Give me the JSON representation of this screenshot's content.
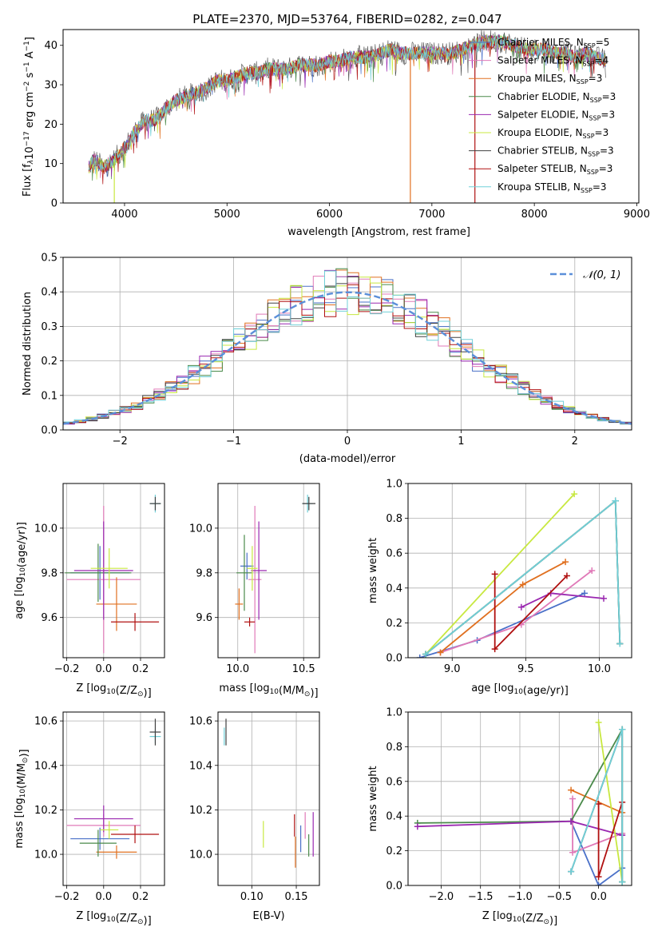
{
  "title": "PLATE=2370, MJD=53764, FIBERID=0282, z=0.047",
  "models": [
    {
      "name": "Chabrier MILES, N",
      "nssp": "5",
      "color": "#4a70c8"
    },
    {
      "name": "Salpeter MILES, N",
      "nssp": "4",
      "color": "#e07ab8"
    },
    {
      "name": "Kroupa MILES, N",
      "nssp": "3",
      "color": "#e07020"
    },
    {
      "name": "Chabrier ELODIE, N",
      "nssp": "3",
      "color": "#4a8a4a"
    },
    {
      "name": "Salpeter ELODIE, N",
      "nssp": "3",
      "color": "#9a28b0"
    },
    {
      "name": "Kroupa ELODIE, N",
      "nssp": "3",
      "color": "#c8e840"
    },
    {
      "name": "Chabrier STELIB, N",
      "nssp": "3",
      "color": "#404040"
    },
    {
      "name": "Salpeter STELIB, N",
      "nssp": "3",
      "color": "#b01010"
    },
    {
      "name": "Kroupa STELIB, N",
      "nssp": "3",
      "color": "#70d0d8"
    }
  ],
  "nssp_sub": "SSP",
  "chart_data": [
    {
      "id": "spectrum",
      "type": "line",
      "xlabel": "wavelength [Angstrom, rest frame]",
      "ylabel_parts": [
        "Flux [f",
        "λ",
        "10",
        "−17",
        " erg cm",
        "−2",
        " s",
        "−1",
        " A",
        "−1",
        "]"
      ],
      "xlim": [
        3400,
        9020
      ],
      "ylim": [
        0,
        44
      ],
      "xticks": [
        4000,
        5000,
        6000,
        7000,
        8000,
        9000
      ],
      "yticks": [
        0,
        10,
        20,
        30,
        40
      ],
      "continuum": [
        [
          3650,
          9
        ],
        [
          3700,
          11
        ],
        [
          3800,
          9
        ],
        [
          3900,
          11
        ],
        [
          4000,
          14
        ],
        [
          4100,
          18
        ],
        [
          4200,
          21
        ],
        [
          4300,
          21
        ],
        [
          4400,
          24
        ],
        [
          4500,
          26
        ],
        [
          4600,
          27
        ],
        [
          4700,
          28
        ],
        [
          4800,
          29
        ],
        [
          4900,
          31
        ],
        [
          5000,
          31
        ],
        [
          5100,
          32
        ],
        [
          5200,
          33
        ],
        [
          5300,
          33
        ],
        [
          5400,
          34
        ],
        [
          5500,
          34
        ],
        [
          5600,
          34
        ],
        [
          5700,
          35
        ],
        [
          5800,
          35
        ],
        [
          5900,
          35
        ],
        [
          6000,
          36
        ],
        [
          6100,
          36
        ],
        [
          6200,
          37
        ],
        [
          6300,
          37
        ],
        [
          6400,
          37
        ],
        [
          6500,
          38
        ],
        [
          6600,
          39
        ],
        [
          6700,
          38
        ],
        [
          6800,
          38
        ],
        [
          6900,
          38
        ],
        [
          7000,
          38
        ],
        [
          7100,
          38
        ],
        [
          7200,
          38
        ],
        [
          7300,
          39
        ],
        [
          7400,
          40
        ],
        [
          7500,
          41
        ],
        [
          7600,
          41
        ],
        [
          7700,
          41
        ],
        [
          7800,
          40
        ],
        [
          7900,
          39
        ],
        [
          8000,
          39
        ],
        [
          8100,
          39
        ],
        [
          8200,
          38
        ],
        [
          8300,
          38
        ],
        [
          8400,
          37
        ],
        [
          8500,
          38
        ],
        [
          8600,
          37
        ],
        [
          8700,
          36
        ]
      ],
      "dips": [
        {
          "x": 3900,
          "y": 0,
          "series": 5
        },
        {
          "x": 6790,
          "y": 0,
          "series": 2
        },
        {
          "x": 7420,
          "y": 0,
          "series": 7
        }
      ]
    },
    {
      "id": "residuals",
      "type": "histogram",
      "xlabel": "(data-model)/error",
      "ylabel": "Normed distribution",
      "xlim": [
        -2.5,
        2.5
      ],
      "ylim": [
        0,
        0.5
      ],
      "xticks": [
        -2,
        -1,
        0,
        1,
        2
      ],
      "yticks": [
        0.0,
        0.1,
        0.2,
        0.3,
        0.4,
        0.5
      ],
      "bin_width": 0.1,
      "legend": "𝒩(0, 1)",
      "gaussian_color": "#5b8fd9"
    },
    {
      "id": "age-vs-Z",
      "type": "scatter",
      "xlabel": "Z [log10(Z/Z⊙)]",
      "ylabel": "age  [log10(age/yr)]",
      "xlim": [
        -0.22,
        0.33
      ],
      "ylim": [
        9.42,
        10.2
      ],
      "xticks": [
        -0.2,
        0.0,
        0.2
      ],
      "yticks": [
        9.6,
        9.8,
        10.0
      ],
      "points": [
        {
          "x": 0.28,
          "y": 10.11,
          "xerr": 0.03,
          "yerr": 0.04,
          "series": 8
        },
        {
          "x": 0.28,
          "y": 10.11,
          "xerr": 0.03,
          "yerr": 0.03,
          "series": 6
        },
        {
          "x": -0.02,
          "y": 9.8,
          "xerr": 0.16,
          "yerr": 0.12,
          "series": 0
        },
        {
          "x": 0.0,
          "y": 9.77,
          "xerr": 0.2,
          "yerr": 0.33,
          "series": 1
        },
        {
          "x": 0.07,
          "y": 9.66,
          "xerr": 0.11,
          "yerr": 0.12,
          "series": 2
        },
        {
          "x": -0.03,
          "y": 9.8,
          "xerr": 0.18,
          "yerr": 0.13,
          "series": 3
        },
        {
          "x": 0.0,
          "y": 9.81,
          "xerr": 0.16,
          "yerr": 0.22,
          "series": 4
        },
        {
          "x": 0.03,
          "y": 9.82,
          "xerr": 0.1,
          "yerr": 0.09,
          "series": 5
        },
        {
          "x": 0.17,
          "y": 9.58,
          "xerr": 0.13,
          "yerr": 0.04,
          "series": 7
        }
      ]
    },
    {
      "id": "age-vs-mass",
      "type": "scatter",
      "xlabel": "mass [log10(M/M⊙)]",
      "ylabel": "",
      "xlim": [
        9.85,
        10.62
      ],
      "ylim": [
        9.42,
        10.2
      ],
      "xticks": [
        10.0,
        10.5
      ],
      "yticks": [
        9.6,
        9.8,
        10.0
      ],
      "points": [
        {
          "x": 10.53,
          "y": 10.11,
          "xerr": 0.04,
          "yerr": 0.04,
          "series": 8
        },
        {
          "x": 10.54,
          "y": 10.11,
          "xerr": 0.05,
          "yerr": 0.03,
          "series": 6
        },
        {
          "x": 10.07,
          "y": 9.83,
          "xerr": 0.05,
          "yerr": 0.06,
          "series": 0
        },
        {
          "x": 10.13,
          "y": 9.77,
          "xerr": 0.05,
          "yerr": 0.33,
          "series": 1
        },
        {
          "x": 10.01,
          "y": 9.66,
          "xerr": 0.03,
          "yerr": 0.07,
          "series": 2
        },
        {
          "x": 10.05,
          "y": 9.8,
          "xerr": 0.06,
          "yerr": 0.17,
          "series": 3
        },
        {
          "x": 10.16,
          "y": 9.81,
          "xerr": 0.06,
          "yerr": 0.22,
          "series": 4
        },
        {
          "x": 10.11,
          "y": 9.82,
          "xerr": 0.04,
          "yerr": 0.1,
          "series": 5
        },
        {
          "x": 10.09,
          "y": 9.58,
          "xerr": 0.04,
          "yerr": 0.02,
          "series": 7
        }
      ]
    },
    {
      "id": "weight-vs-age",
      "type": "line",
      "xlabel": "age  [log10(age/yr)]",
      "ylabel": "mass weight",
      "xlim": [
        8.7,
        10.22
      ],
      "ylim": [
        0,
        1.0
      ],
      "xticks": [
        9.0,
        9.5,
        10.0
      ],
      "yticks": [
        0.0,
        0.2,
        0.4,
        0.6,
        0.8,
        1.0
      ],
      "series": [
        {
          "series": 0,
          "x": [
            8.78,
            9.17,
            9.9
          ],
          "y": [
            0.0,
            0.1,
            0.37
          ]
        },
        {
          "series": 1,
          "x": [
            8.92,
            9.47,
            9.95
          ],
          "y": [
            0.03,
            0.19,
            0.5
          ]
        },
        {
          "series": 2,
          "x": [
            8.92,
            9.48,
            9.77
          ],
          "y": [
            0.03,
            0.42,
            0.55
          ]
        },
        {
          "series": 3,
          "x": [
            8.82,
            10.11,
            10.14
          ],
          "y": [
            0.02,
            0.9,
            0.08
          ]
        },
        {
          "series": 4,
          "x": [
            9.47,
            9.67,
            10.03
          ],
          "y": [
            0.29,
            0.37,
            0.34
          ]
        },
        {
          "series": 5,
          "x": [
            8.82,
            9.83
          ],
          "y": [
            0.02,
            0.94
          ]
        },
        {
          "series": 6,
          "x": [
            8.82,
            10.11,
            10.14
          ],
          "y": [
            0.02,
            0.9,
            0.08
          ]
        },
        {
          "series": 7,
          "x": [
            9.29,
            9.29,
            9.78
          ],
          "y": [
            0.48,
            0.05,
            0.47
          ]
        },
        {
          "series": 8,
          "x": [
            8.82,
            10.11,
            10.14
          ],
          "y": [
            0.02,
            0.9,
            0.08
          ]
        }
      ]
    },
    {
      "id": "mass-vs-Z",
      "type": "scatter",
      "xlabel": "Z [log10(Z/Z⊙)]",
      "ylabel": "mass [log10(M/M⊙)]",
      "xlim": [
        -0.22,
        0.33
      ],
      "ylim": [
        9.86,
        10.64
      ],
      "xticks": [
        -0.2,
        0.0,
        0.2
      ],
      "yticks": [
        10.0,
        10.2,
        10.4,
        10.6
      ],
      "points": [
        {
          "x": 0.28,
          "y": 10.53,
          "xerr": 0.03,
          "yerr": 0.03,
          "series": 8
        },
        {
          "x": 0.28,
          "y": 10.55,
          "xerr": 0.03,
          "yerr": 0.06,
          "series": 6
        },
        {
          "x": -0.02,
          "y": 10.07,
          "xerr": 0.16,
          "yerr": 0.05,
          "series": 0
        },
        {
          "x": 0.0,
          "y": 10.13,
          "xerr": 0.2,
          "yerr": 0.05,
          "series": 1
        },
        {
          "x": 0.07,
          "y": 10.01,
          "xerr": 0.11,
          "yerr": 0.03,
          "series": 2
        },
        {
          "x": -0.03,
          "y": 10.05,
          "xerr": 0.1,
          "yerr": 0.06,
          "series": 3
        },
        {
          "x": 0.0,
          "y": 10.16,
          "xerr": 0.16,
          "yerr": 0.06,
          "series": 4
        },
        {
          "x": 0.03,
          "y": 10.11,
          "xerr": 0.05,
          "yerr": 0.04,
          "series": 5
        },
        {
          "x": 0.17,
          "y": 10.09,
          "xerr": 0.13,
          "yerr": 0.04,
          "series": 7
        }
      ]
    },
    {
      "id": "mass-vs-ebv",
      "type": "scatter",
      "xlabel": "E(B-V)",
      "ylabel": "",
      "xlim": [
        0.062,
        0.176
      ],
      "ylim": [
        9.86,
        10.64
      ],
      "xticks": [
        0.1,
        0.15
      ],
      "yticks": [
        10.0,
        10.2,
        10.4,
        10.6
      ],
      "points": [
        {
          "x": 0.069,
          "y": 10.53,
          "xerr": 0,
          "yerr": 0.04,
          "series": 8
        },
        {
          "x": 0.071,
          "y": 10.55,
          "xerr": 0,
          "yerr": 0.06,
          "series": 6
        },
        {
          "x": 0.155,
          "y": 10.07,
          "xerr": 0,
          "yerr": 0.06,
          "series": 0
        },
        {
          "x": 0.16,
          "y": 10.13,
          "xerr": 0,
          "yerr": 0.06,
          "series": 1
        },
        {
          "x": 0.149,
          "y": 10.01,
          "xerr": 0,
          "yerr": 0.07,
          "series": 2
        },
        {
          "x": 0.164,
          "y": 10.04,
          "xerr": 0,
          "yerr": 0.05,
          "series": 3
        },
        {
          "x": 0.169,
          "y": 10.09,
          "xerr": 0,
          "yerr": 0.1,
          "series": 4
        },
        {
          "x": 0.113,
          "y": 10.09,
          "xerr": 0,
          "yerr": 0.06,
          "series": 5
        },
        {
          "x": 0.148,
          "y": 10.13,
          "xerr": 0,
          "yerr": 0.05,
          "series": 7
        }
      ]
    },
    {
      "id": "weight-vs-Z",
      "type": "line",
      "xlabel": "Z [log10(Z/Z⊙)]",
      "ylabel": "mass weight",
      "xlim": [
        -2.42,
        0.42
      ],
      "ylim": [
        0,
        1.0
      ],
      "xticks": [
        -2.0,
        -1.5,
        -1.0,
        -0.5,
        0.0
      ],
      "yticks": [
        0.0,
        0.2,
        0.4,
        0.6,
        0.8,
        1.0
      ],
      "series": [
        {
          "series": 0,
          "x": [
            -0.35,
            0.0,
            0.3
          ],
          "y": [
            0.37,
            0.0,
            0.1
          ]
        },
        {
          "series": 1,
          "x": [
            -0.33,
            -0.33,
            0.3
          ],
          "y": [
            0.5,
            0.19,
            0.3
          ]
        },
        {
          "series": 2,
          "x": [
            -0.35,
            0.3
          ],
          "y": [
            0.55,
            0.42
          ]
        },
        {
          "series": 3,
          "x": [
            -2.3,
            -0.35,
            0.3,
            0.3
          ],
          "y": [
            0.36,
            0.37,
            0.9,
            0.02
          ]
        },
        {
          "series": 4,
          "x": [
            -2.3,
            -0.35,
            0.3
          ],
          "y": [
            0.34,
            0.37,
            0.29
          ]
        },
        {
          "series": 5,
          "x": [
            0.0,
            0.3
          ],
          "y": [
            0.94,
            0.02
          ]
        },
        {
          "series": 6,
          "x": [
            -0.35,
            0.3,
            0.3
          ],
          "y": [
            0.08,
            0.9,
            0.02
          ]
        },
        {
          "series": 7,
          "x": [
            0.0,
            0.0,
            0.3
          ],
          "y": [
            0.47,
            0.05,
            0.48
          ]
        },
        {
          "series": 8,
          "x": [
            -0.35,
            0.3,
            0.3
          ],
          "y": [
            0.08,
            0.9,
            0.02
          ]
        }
      ]
    }
  ]
}
